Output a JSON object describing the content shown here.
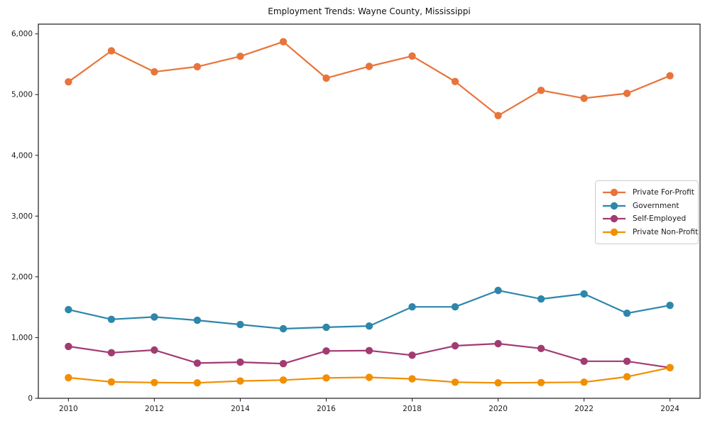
{
  "figure": {
    "background": "#ffffff",
    "spine_color": "#1a1a1a",
    "tick_color": "#1a1a1a"
  },
  "chart_data": {
    "type": "line",
    "title": "Employment Trends: Wayne County, Mississippi",
    "xlabel": "",
    "ylabel": "",
    "x": [
      2010,
      2011,
      2012,
      2013,
      2014,
      2015,
      2016,
      2017,
      2018,
      2019,
      2020,
      2021,
      2022,
      2023,
      2024
    ],
    "series": [
      {
        "name": "Private For-Profit",
        "color": "#E8743B",
        "values": [
          5210,
          5720,
          5375,
          5460,
          5630,
          5870,
          5270,
          5465,
          5635,
          5215,
          4655,
          5070,
          4940,
          5020,
          5310
        ]
      },
      {
        "name": "Government",
        "color": "#2E86AB",
        "values": [
          1460,
          1300,
          1340,
          1285,
          1215,
          1145,
          1170,
          1190,
          1505,
          1505,
          1775,
          1635,
          1720,
          1400,
          1530
        ]
      },
      {
        "name": "Self-Employed",
        "color": "#A23B72",
        "values": [
          855,
          750,
          795,
          580,
          595,
          570,
          780,
          785,
          710,
          865,
          900,
          820,
          610,
          610,
          505
        ]
      },
      {
        "name": "Private Non-Profit",
        "color": "#F18F01",
        "values": [
          340,
          270,
          260,
          255,
          285,
          300,
          335,
          345,
          320,
          265,
          255,
          260,
          265,
          355,
          505
        ]
      }
    ],
    "x_ticks": [
      2010,
      2012,
      2014,
      2016,
      2018,
      2020,
      2022,
      2024
    ],
    "y_ticks": [
      0,
      1000,
      2000,
      3000,
      4000,
      5000,
      6000
    ],
    "y_tick_labels": [
      "0",
      "1,000",
      "2,000",
      "3,000",
      "4,000",
      "5,000",
      "6,000"
    ],
    "xlim": [
      2009.3,
      2024.7
    ],
    "ylim": [
      0,
      6160
    ],
    "grid": false,
    "legend_position": "center right",
    "marker": "circle",
    "line_width": 2.2,
    "marker_radius": 5.2
  }
}
